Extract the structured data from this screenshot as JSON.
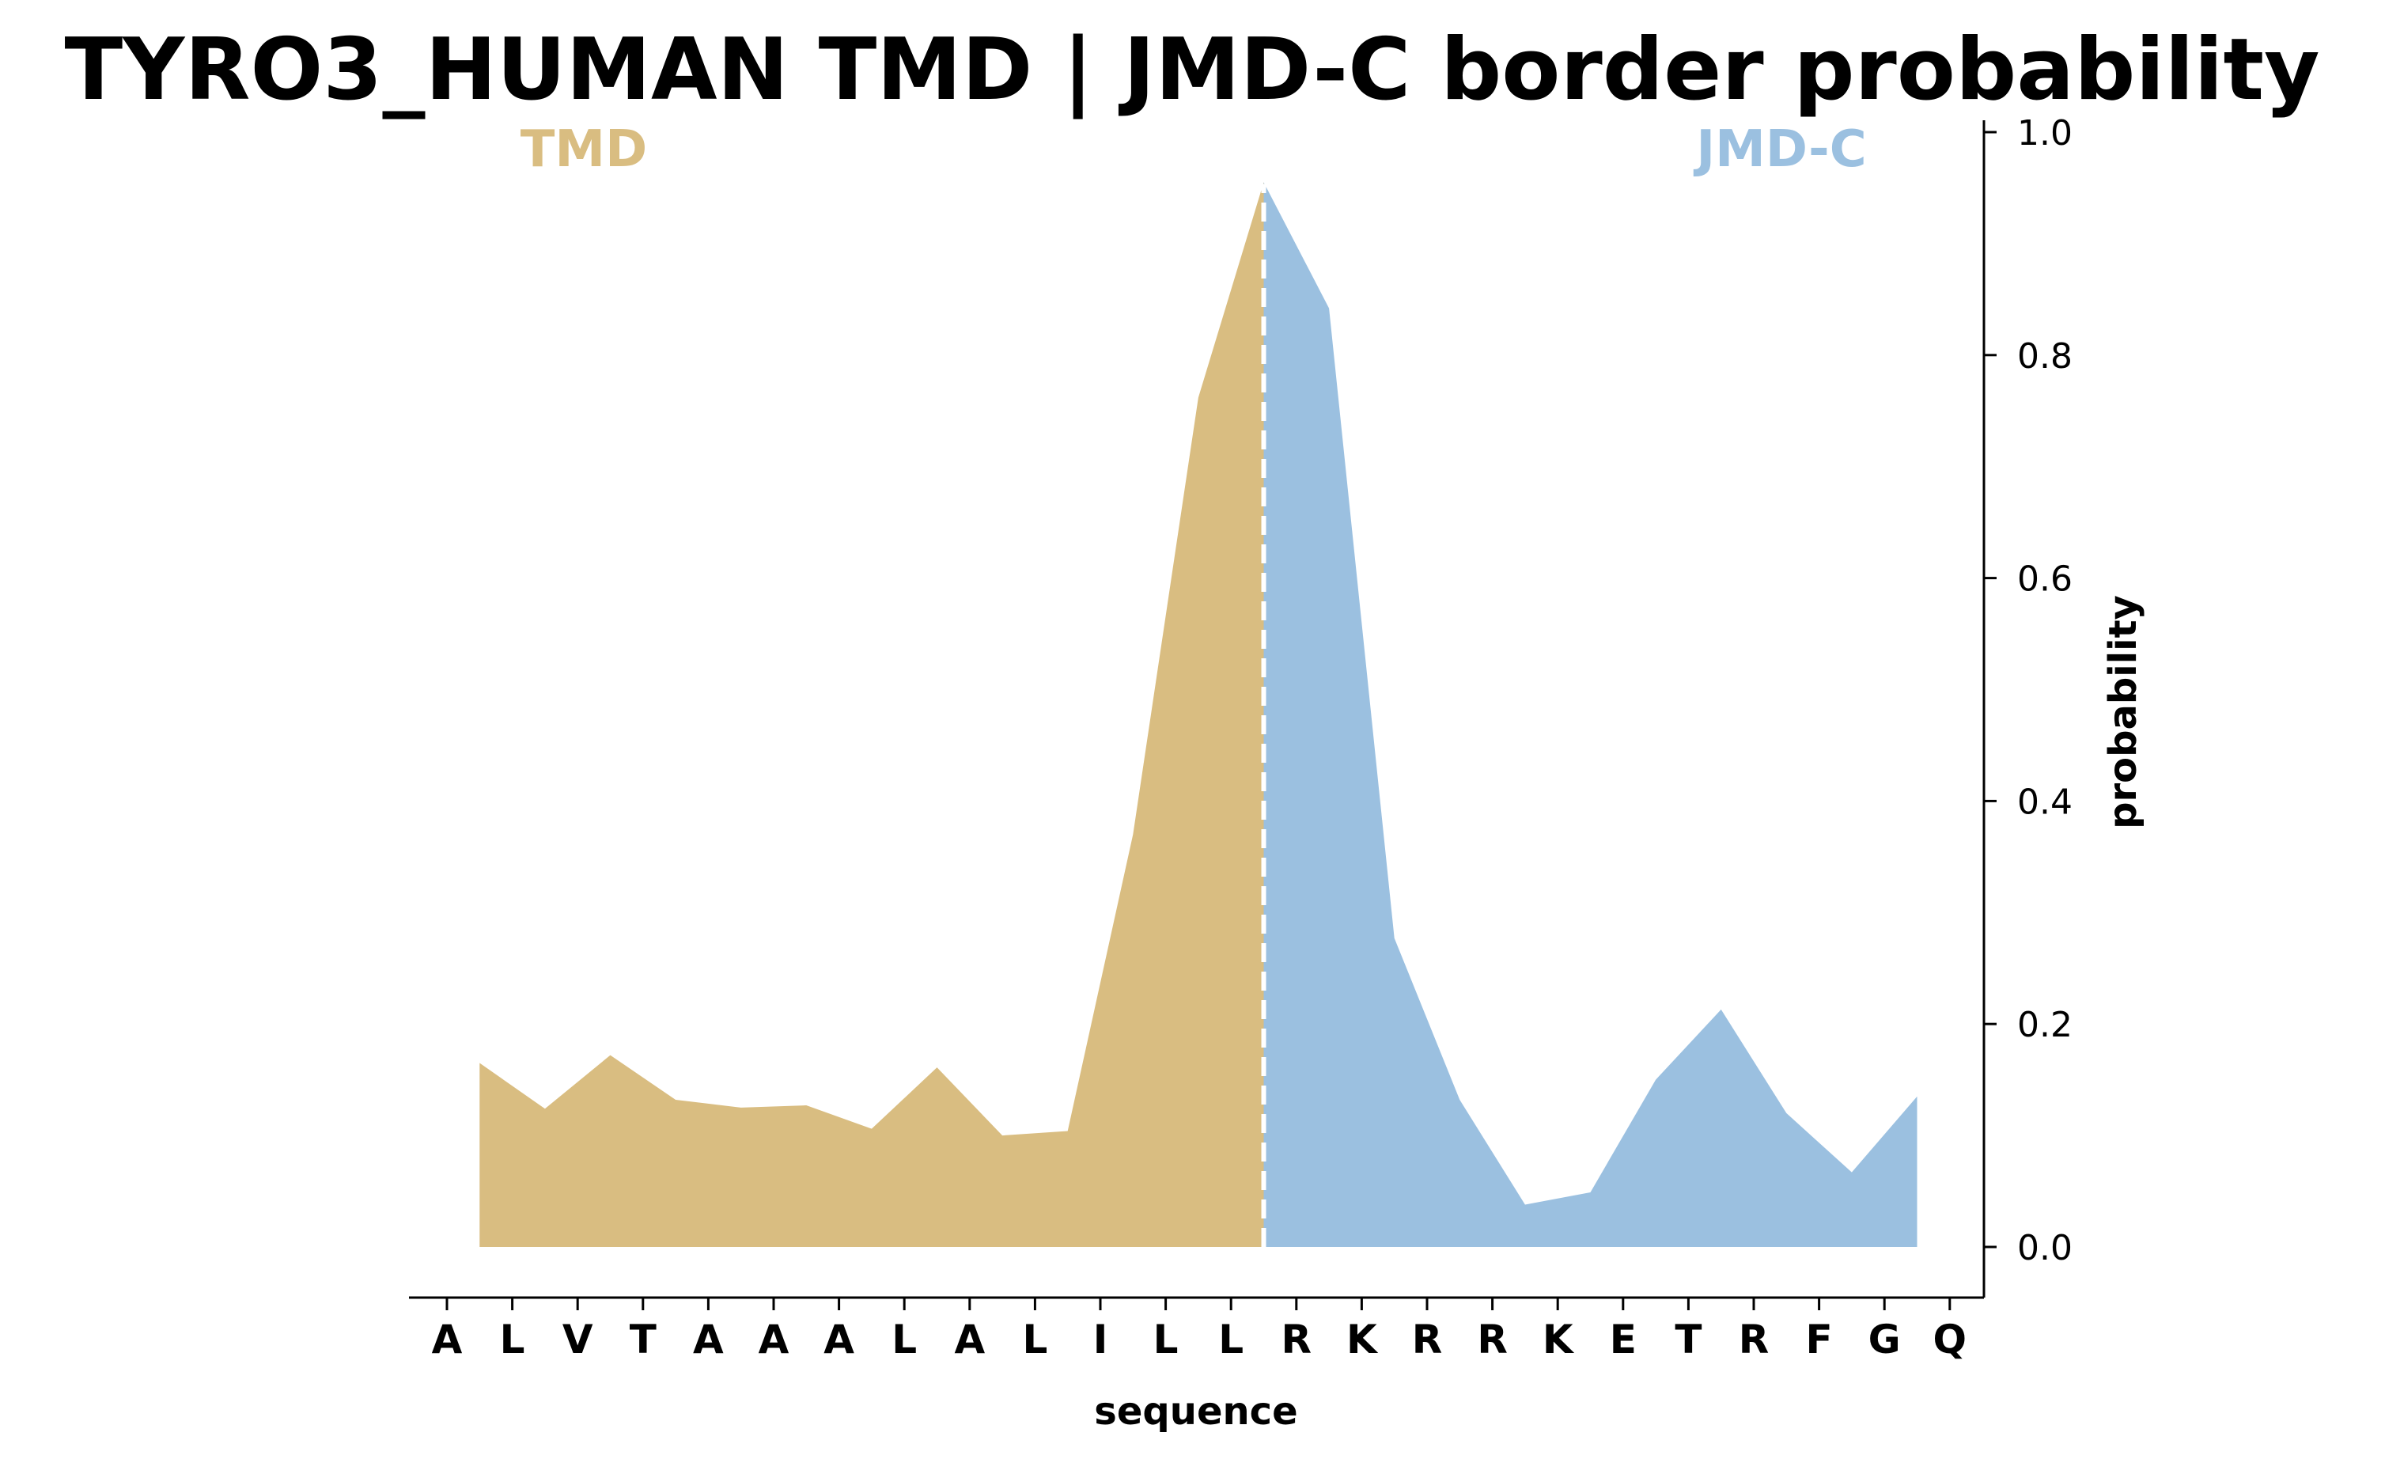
{
  "chart_data": {
    "type": "area",
    "title": "TYRO3_HUMAN TMD | JMD-C border probability",
    "xlabel": "sequence",
    "ylabel": "probability",
    "ylim": [
      -0.05,
      1.0
    ],
    "yticks": [
      "0.0",
      "0.2",
      "0.4",
      "0.6",
      "0.8",
      "1.0"
    ],
    "ytick_values": [
      0.0,
      0.2,
      0.4,
      0.6,
      0.8,
      1.0
    ],
    "y_axis_side": "right",
    "grid": false,
    "categories": [
      "A",
      "L",
      "V",
      "T",
      "A",
      "A",
      "A",
      "L",
      "A",
      "L",
      "I",
      "L",
      "L",
      "R",
      "K",
      "R",
      "R",
      "K",
      "E",
      "T",
      "R",
      "F",
      "G",
      "Q"
    ],
    "border_between_index": 12,
    "region_labels": [
      {
        "name": "TMD",
        "color": "#d9bd81"
      },
      {
        "name": "JMD-C",
        "color": "#9bc0e0"
      }
    ],
    "series": [
      {
        "color": "#d9bd81",
        "x": [
          0.5,
          1.5,
          2.5,
          3.5,
          4.5,
          5.5,
          6.5,
          7.5,
          8.5,
          9.5,
          10.5,
          11.5,
          12.5
        ],
        "values": [
          0.165,
          0.124,
          0.172,
          0.132,
          0.125,
          0.127,
          0.106,
          0.161,
          0.1,
          0.104,
          0.37,
          0.762,
          0.955
        ]
      },
      {
        "color": "#9bc0e0",
        "x": [
          12.5,
          13.5,
          14.5,
          15.5,
          16.5,
          17.5,
          18.5,
          19.5,
          20.5,
          21.5,
          22.5
        ],
        "values": [
          0.955,
          0.842,
          0.277,
          0.132,
          0.038,
          0.049,
          0.15,
          0.213,
          0.12,
          0.067,
          0.135
        ]
      }
    ],
    "border_line": {
      "color": "#ffffff",
      "style": "dashed"
    }
  }
}
